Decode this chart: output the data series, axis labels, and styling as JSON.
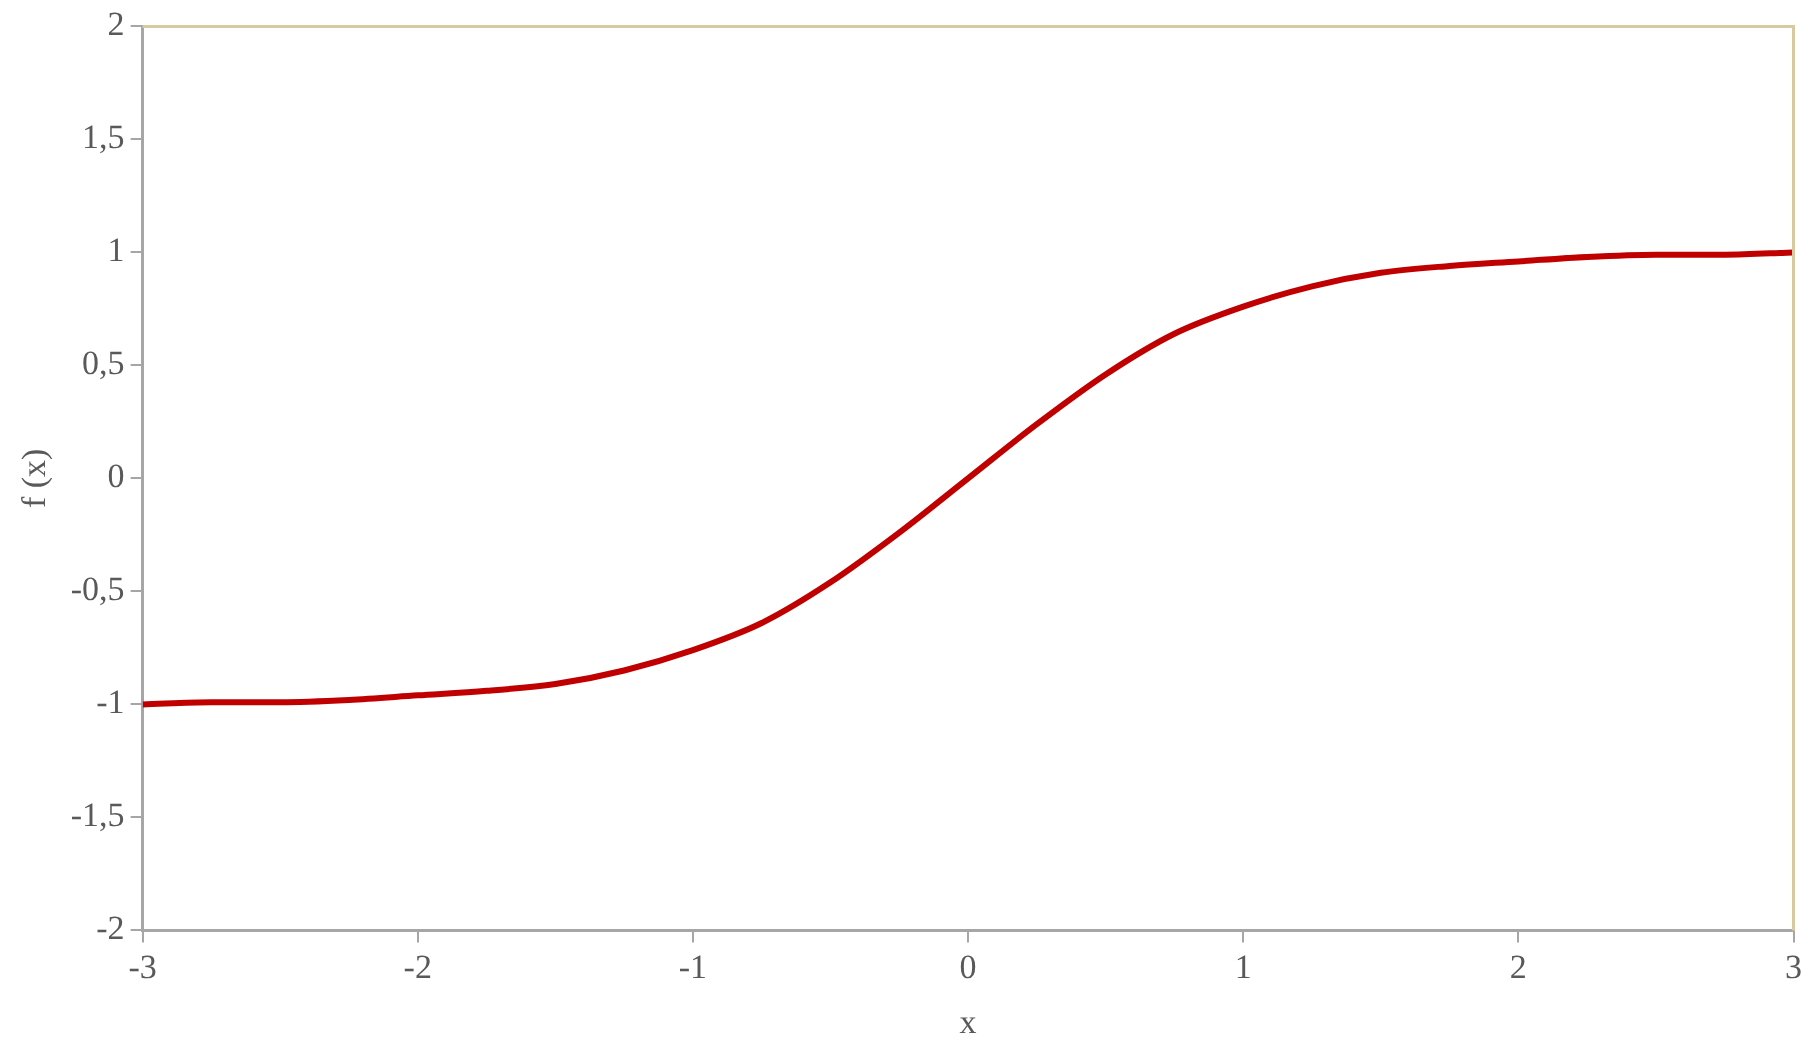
{
  "chart_data": {
    "type": "line",
    "xlabel": "x",
    "ylabel": "f (x)",
    "x": [
      -3,
      -2.75,
      -2.5,
      -2.25,
      -2,
      -1.75,
      -1.5,
      -1.25,
      -1,
      -0.75,
      -0.5,
      -0.25,
      0,
      0.25,
      0.5,
      0.75,
      1,
      1.25,
      1.5,
      1.75,
      2,
      2.25,
      2.5,
      2.75,
      3
    ],
    "series": [
      {
        "color": "#c00000",
        "values": [
          -1.0,
          -0.99,
          -0.99,
          -0.98,
          -0.96,
          -0.94,
          -0.91,
          -0.85,
          -0.76,
          -0.64,
          -0.46,
          -0.24,
          0,
          0.24,
          0.46,
          0.64,
          0.76,
          0.85,
          0.91,
          0.94,
          0.96,
          0.98,
          0.99,
          0.99,
          1.0
        ]
      }
    ],
    "xlim": [
      -3,
      3
    ],
    "xticks": [
      -3,
      -2,
      -1,
      0,
      1,
      2,
      3
    ],
    "ylim": [
      -2,
      2
    ],
    "yticks": [
      -2,
      {
        "value": -1.5,
        "label": "-1,5"
      },
      -1,
      {
        "value": -0.5,
        "label": "-0,5"
      },
      0,
      {
        "value": 0.5,
        "label": "0,5"
      },
      1,
      {
        "value": 1.5,
        "label": "1,5"
      },
      2
    ],
    "grid": false,
    "legend": false,
    "marker": "none",
    "line_style": "solid"
  }
}
